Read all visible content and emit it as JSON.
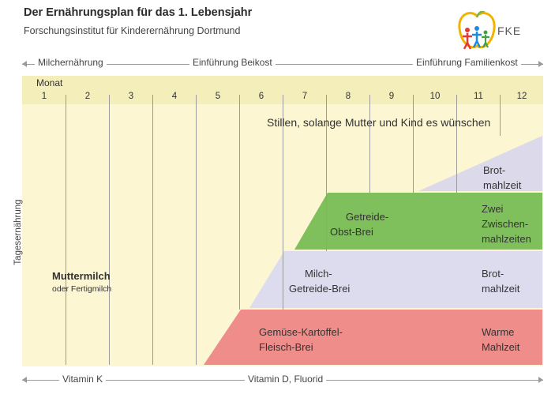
{
  "header": {
    "title": "Der Ernährungsplan für das 1. Lebensjahr",
    "subtitle": "Forschungsinstitut für Kinderernährung Dortmund",
    "logo_text": "FKE"
  },
  "phases": [
    "Milchernährung",
    "Einführung Beikost",
    "Einführung Familienkost"
  ],
  "timeline": {
    "label": "Monat",
    "months": [
      "1",
      "2",
      "3",
      "4",
      "5",
      "6",
      "7",
      "8",
      "9",
      "10",
      "11",
      "12"
    ]
  },
  "y_axis_label": "Tagesernährung",
  "breastfeeding_note": "Stillen, solange Mutter und Kind es wünschen",
  "milk": {
    "main": "Muttermilch",
    "sub": "oder Fertigmilch"
  },
  "bands": {
    "brot": {
      "right_line1": "Brot-",
      "right_line2": "mahlzeit",
      "color": "#dcd9ea"
    },
    "getreide_obst": {
      "left_line1": "Getreide-",
      "left_line2": "Obst-Brei",
      "right_line1": "Zwei",
      "right_line2": "Zwischen-",
      "right_line3": "mahlzeiten",
      "color": "#7fbf5c"
    },
    "milch_getreide": {
      "left_line1": "Milch-",
      "left_line2": "Getreide-Brei",
      "right_line1": "Brot-",
      "right_line2": "mahlzeit",
      "color": "#dddbee"
    },
    "gemuese": {
      "left_line1": "Gemüse-Kartoffel-",
      "left_line2": "Fleisch-Brei",
      "right_line1": "Warme",
      "right_line2": "Mahlzeit",
      "color": "#ee8d8a"
    }
  },
  "vitamins": [
    "Vitamin K",
    "Vitamin D, Fluorid"
  ]
}
